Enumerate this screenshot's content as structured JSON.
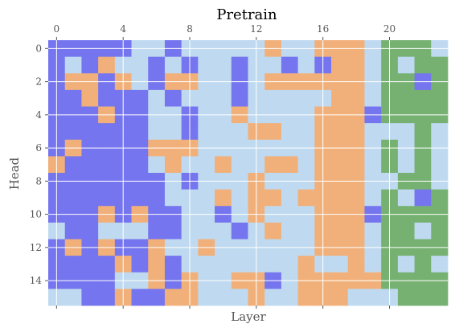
{
  "chart_data": {
    "type": "heatmap",
    "title": "Pretrain",
    "xlabel": "Layer",
    "ylabel": "Head",
    "x_ticks": [
      0,
      4,
      8,
      12,
      16,
      20
    ],
    "y_ticks": [
      0,
      2,
      4,
      6,
      8,
      10,
      12,
      14
    ],
    "x_tick_labels": [
      "0",
      "4",
      "8",
      "12",
      "16",
      "20"
    ],
    "y_tick_labels": [
      "0",
      "2",
      "4",
      "6",
      "8",
      "10",
      "12",
      "14"
    ],
    "n_layers": 24,
    "n_heads": 16,
    "grid": true,
    "categories": [
      "blue",
      "light-blue",
      "orange",
      "green"
    ],
    "colors": {
      "blue": "#7575ef",
      "light-blue": "#bfdaf0",
      "orange": "#f1b07a",
      "green": "#76b172"
    },
    "rows": [
      "BBBBBLLBLLLLLOLLOOOLGGGL",
      "BLBOLLBLBLLBLLBLBOOLGLGG",
      "BOOBOLBOOLLBLOOOOOOLGGBG",
      "BBOBBBLBLLLBLLLLLOOLGGGG",
      "BBBOBBLLBLLOLLLLOOOBGGGG",
      "BBBBBBLLBLLLOOLLOOOLLLGL",
      "BOBBBBOOOLLLLLLLOOOLGLGL",
      "OBBBBBLOLLOLLOOLOOOLGLGL",
      "BBBBBBBLBLLLOLLLOOOLLGGL",
      "BBBBBBBLLLOLOOLOOOOLGLBG",
      "BBBOBOBBLLBLOLLLOOOBGGGG",
      "LBBLLLBBLLLBLOLLOOOLGGLG",
      "BOBOBBOLLOLLLLLLOOOLGGGG",
      "BBBBOBOBLLLLLLLOLLOLGLGL",
      "BBBBLLOBOLLOOBLOOOOOGGGG",
      "LLBBOBBOOLLLOLLOOOLLLGGG"
    ]
  }
}
